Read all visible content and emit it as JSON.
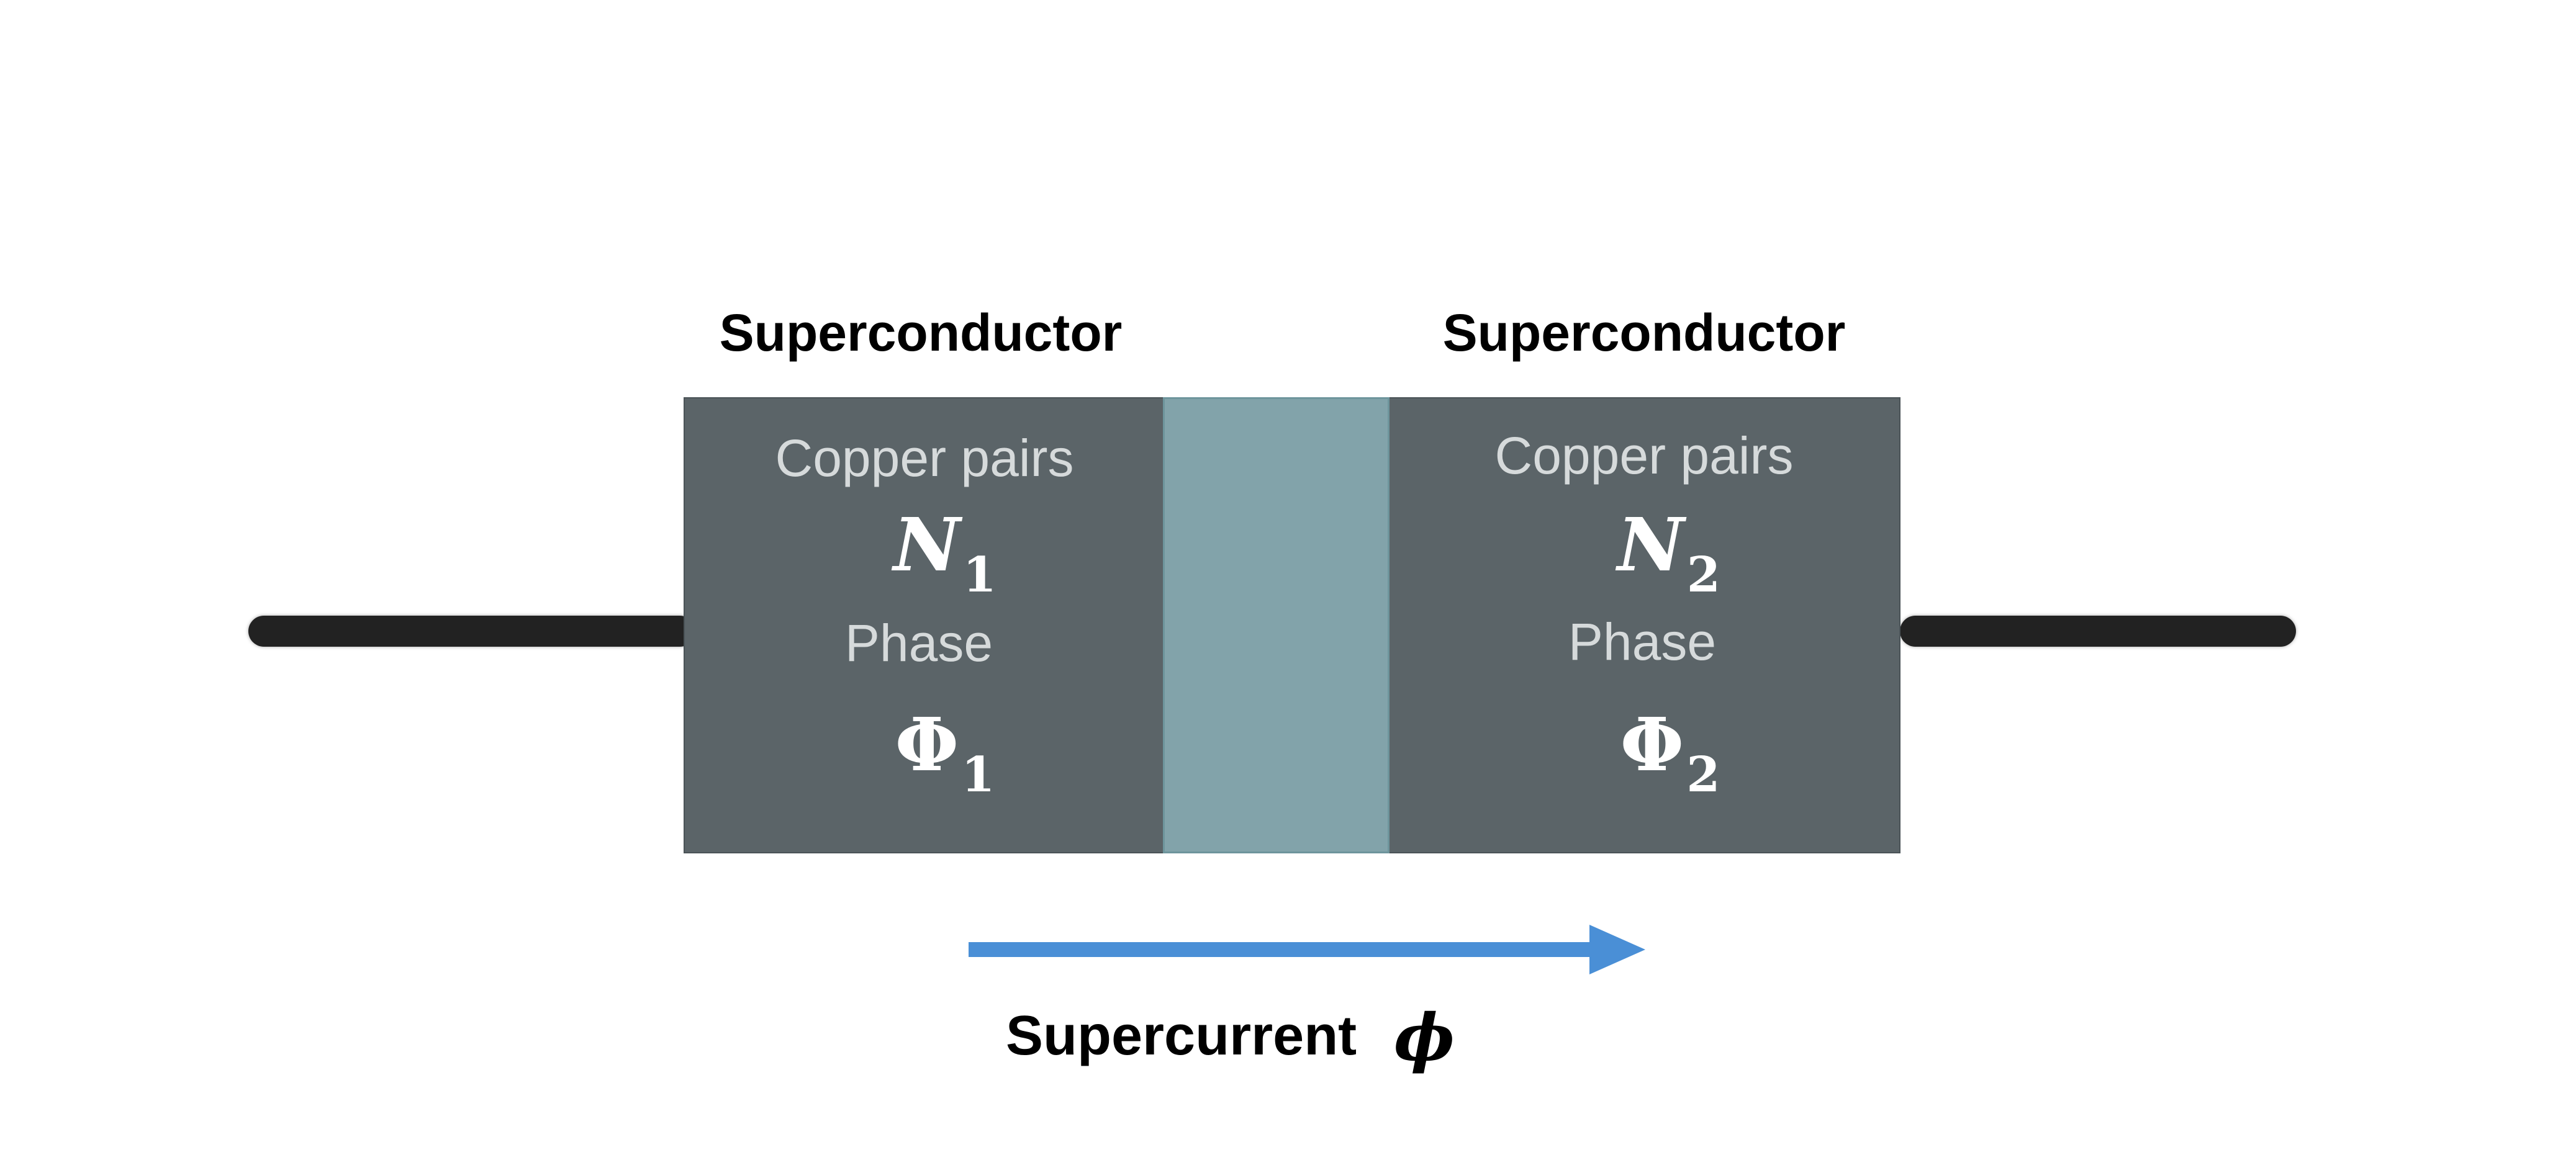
{
  "colors": {
    "superconductor_fill": "#5b6468",
    "barrier_fill": "#82a3aa",
    "lead": "#222222",
    "arrow": "#4a8fd6",
    "inner_text": "#d6dadb",
    "symbol_text": "#ffffff"
  },
  "left": {
    "title": "Superconductor",
    "pairs_label": "Copper pairs",
    "pairs_symbol": "N",
    "pairs_subscript": "1",
    "phase_label": "Phase",
    "phase_symbol": "Φ",
    "phase_subscript": "1"
  },
  "right": {
    "title": "Superconductor",
    "pairs_label": "Copper pairs",
    "pairs_symbol": "N",
    "pairs_subscript": "2",
    "phase_label": "Phase",
    "phase_symbol": "Φ",
    "phase_subscript": "2"
  },
  "current": {
    "label": "Supercurrent",
    "symbol": "ϕ",
    "direction": "left-to-right"
  }
}
